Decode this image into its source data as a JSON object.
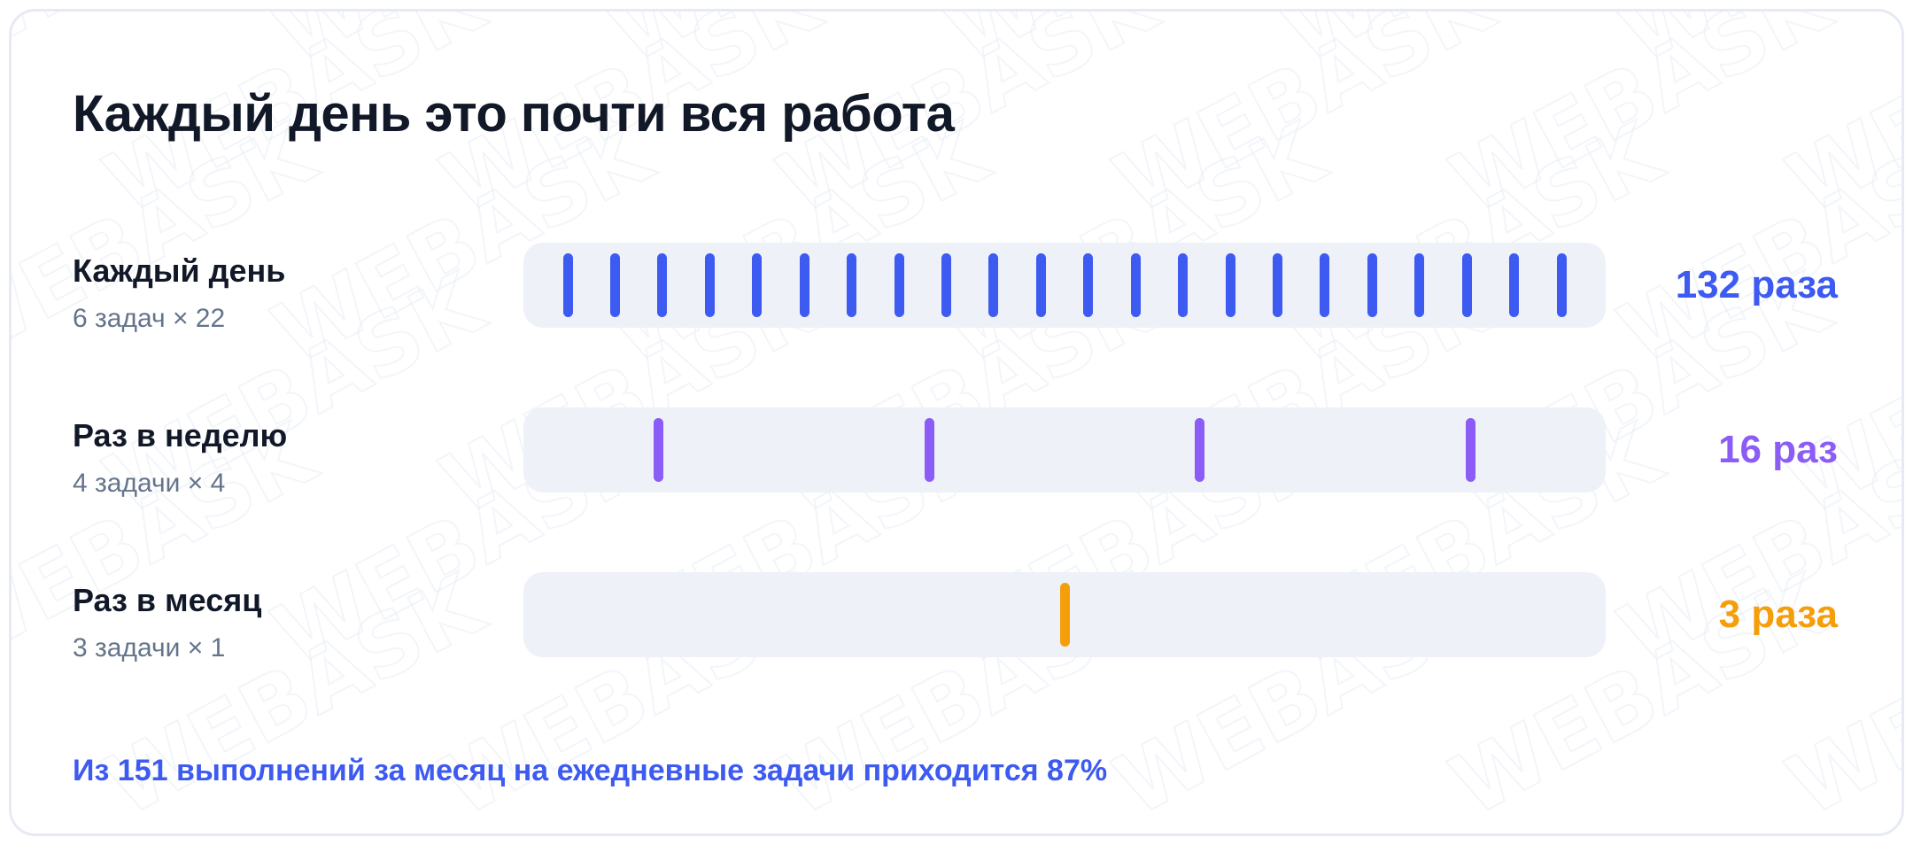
{
  "title": "Каждый день это почти вся работа",
  "footnote": "Из 151 выполнений за месяц на ежедневные задачи приходится 87%",
  "watermark_logo": "WEBASK",
  "chart_data": {
    "type": "bar",
    "title": "Каждый день это почти вся работа",
    "categories": [
      "Каждый день",
      "Раз в неделю",
      "Раз в месяц"
    ],
    "series": [
      {
        "label": "Каждый день",
        "subtitle": "6 задач × 22",
        "ticks": 22,
        "total": 132,
        "total_label": "132 раза",
        "color": "#3d5af1"
      },
      {
        "label": "Раз в неделю",
        "subtitle": "4 задачи × 4",
        "ticks": 4,
        "total": 16,
        "total_label": "16 раз",
        "color": "#8b5cf6"
      },
      {
        "label": "Раз в месяц",
        "subtitle": "3 задачи × 1",
        "ticks": 1,
        "total": 3,
        "total_label": "3 раза",
        "color": "#f59e0b"
      }
    ],
    "grand_total": 151,
    "daily_share_percent": 87,
    "legend": "none",
    "grid": false
  }
}
